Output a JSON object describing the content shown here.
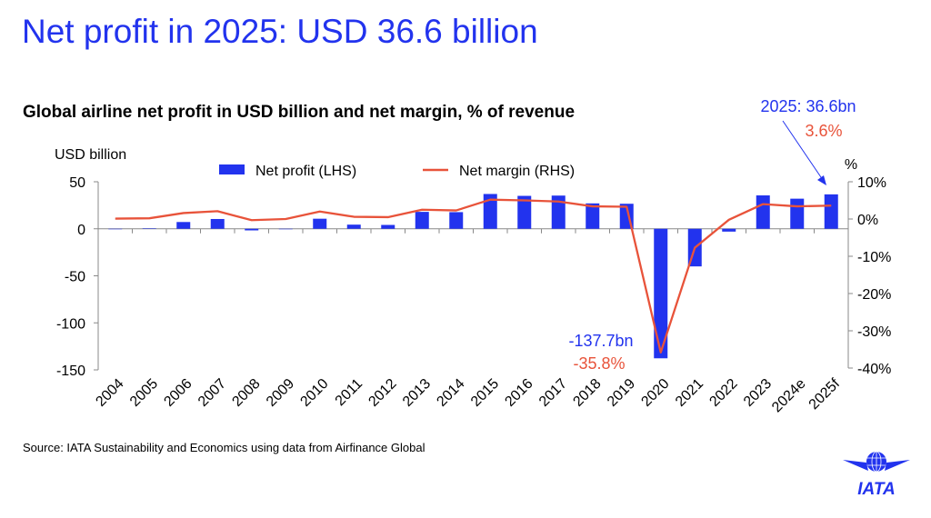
{
  "title": "Net profit in 2025: USD 36.6 billion",
  "source": "Source: IATA Sustainability and Economics using data from Airfinance Global",
  "logo_text": "IATA",
  "colors": {
    "title": "#2233ee",
    "bar": "#2233ee",
    "line": "#e8533a"
  },
  "chart_data": {
    "type": "bar+line",
    "title": "Global airline net profit in USD billion and net margin, % of revenue",
    "ylabel_left": "USD billion",
    "ylabel_right": "%",
    "ylim_left": [
      -150,
      50
    ],
    "ylim_right": [
      -40,
      10
    ],
    "yticks_left": [
      "50",
      "0",
      "-50",
      "-100",
      "-150"
    ],
    "yticks_right": [
      "10%",
      "0%",
      "-10%",
      "-20%",
      "-30%",
      "-40%"
    ],
    "grid": false,
    "legend_position": "top",
    "categories": [
      "2004",
      "2005",
      "2006",
      "2007",
      "2008",
      "2009",
      "2010",
      "2011",
      "2012",
      "2013",
      "2014",
      "2015",
      "2016",
      "2017",
      "2018",
      "2019",
      "2020",
      "2021",
      "2022",
      "2023",
      "2024e",
      "2025f"
    ],
    "series": [
      {
        "name": "Net profit (LHS)",
        "type": "bar",
        "axis": "left",
        "values": [
          0,
          0.5,
          7.2,
          10.4,
          -1.7,
          0,
          10.7,
          4.4,
          4.1,
          18,
          17.7,
          37,
          35,
          35.3,
          27,
          26.6,
          -137.7,
          -40,
          -3,
          35.5,
          32,
          36.6
        ]
      },
      {
        "name": "Net margin (RHS)",
        "type": "line",
        "axis": "right",
        "values": [
          0.1,
          0.2,
          1.6,
          2.1,
          -0.3,
          0,
          2.0,
          0.6,
          0.5,
          2.5,
          2.3,
          5.2,
          5.0,
          4.7,
          3.4,
          3.3,
          -35.8,
          -7.7,
          -0.2,
          4.0,
          3.4,
          3.6
        ]
      }
    ],
    "annotations": {
      "end_profit": "2025: 36.6bn",
      "end_margin": "3.6%",
      "low_profit": "-137.7bn",
      "low_margin": "-35.8%"
    }
  }
}
